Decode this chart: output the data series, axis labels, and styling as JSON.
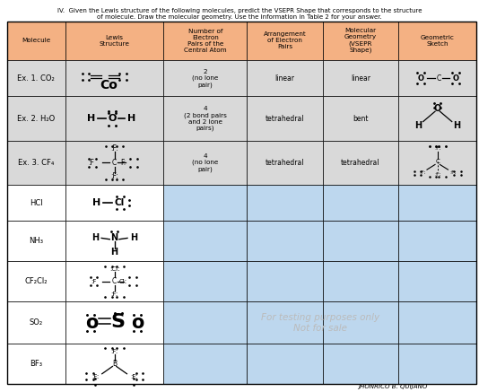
{
  "title_line1": "IV.  Given the Lewis structure of the following molecules, predict the VSEPR Shape that corresponds to the structure",
  "title_line2": "of molecule. Draw the molecular geometry. Use the information in Table 2 for your answer.",
  "header": [
    "Molecule",
    "Lewis\nStructure",
    "Number of\nElectron\nPairs of the\nCentral Atom",
    "Arrangement\nof Electron\nPairs",
    "Molecular\nGeometry\n(VSEPR\nShape)",
    "Geometric\nSketch"
  ],
  "molecules": [
    "Ex. 1. CO₂",
    "Ex. 2. H₂O",
    "Ex. 3. CF₄",
    "HCl",
    "NH₃",
    "CF₂Cl₂",
    "SO₂",
    "BF₃"
  ],
  "numbers": [
    "2\n(no lone\npair)",
    "4\n(2 bond pairs\nand 2 lone\npairs)",
    "4\n(no lone\npair)",
    "",
    "",
    "",
    "",
    ""
  ],
  "arrangements": [
    "linear",
    "tetrahedral",
    "tetrahedral",
    "",
    "",
    "",
    "",
    ""
  ],
  "geometries": [
    "linear",
    "bent",
    "tetrahedral",
    "",
    "",
    "",
    "",
    ""
  ],
  "header_bg": "#f4b183",
  "example_bg": "#d9d9d9",
  "blank_bg": "#bdd7ee",
  "mol_bg": "#ffffff",
  "watermark": "For testing purposes only\nNot for sale",
  "watermark_color": "#aaaaaa",
  "footer": "JHONRICO B. QUIJANO",
  "fig_w": 5.34,
  "fig_h": 4.37,
  "dpi": 100
}
